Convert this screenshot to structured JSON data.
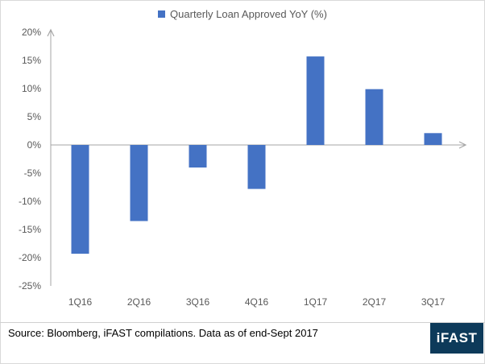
{
  "chart_data": {
    "type": "bar",
    "title": "",
    "xlabel": "",
    "ylabel": "",
    "categories": [
      "1Q16",
      "2Q16",
      "3Q16",
      "4Q16",
      "1Q17",
      "2Q17",
      "3Q17"
    ],
    "series": [
      {
        "name": "Quarterly Loan Approved YoY (%)",
        "values": [
          -19.3,
          -13.5,
          -4.0,
          -7.8,
          15.7,
          9.9,
          2.1
        ]
      }
    ],
    "ylim": [
      -25,
      20
    ],
    "yticks": [
      "20%",
      "15%",
      "10%",
      "5%",
      "0%",
      "-5%",
      "-10%",
      "-15%",
      "-20%",
      "-25%"
    ],
    "ytick_values": [
      20,
      15,
      10,
      5,
      0,
      -5,
      -10,
      -15,
      -20,
      -25
    ],
    "grid": false,
    "legend_position": "top-center",
    "bar_color": "#4472c4"
  },
  "footer": {
    "source": "Source: Bloomberg, iFAST compilations. Data as of end-Sept 2017",
    "logo_text": "iFAST",
    "logo_color": "#0d3a5a"
  }
}
